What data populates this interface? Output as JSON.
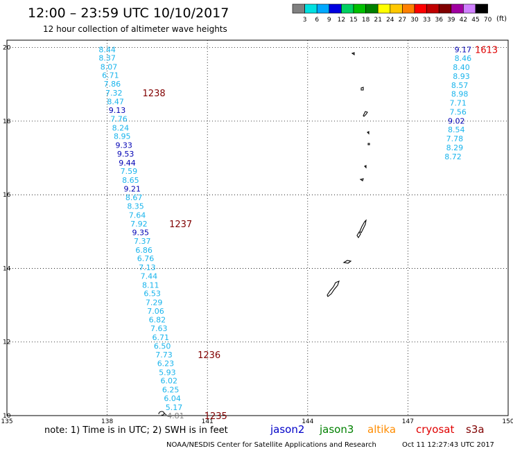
{
  "header": {
    "title": "12:00 – 23:59 UTC 10/10/2017",
    "subtitle": "12 hour collection of altimeter wave heights"
  },
  "legend": {
    "unit": "(ft)",
    "bins": [
      {
        "label": "3",
        "color": "#808080"
      },
      {
        "label": "6",
        "color": "#00e0e0"
      },
      {
        "label": "9",
        "color": "#00a8ff"
      },
      {
        "label": "12",
        "color": "#0000e0"
      },
      {
        "label": "15",
        "color": "#00d060"
      },
      {
        "label": "18",
        "color": "#00c000"
      },
      {
        "label": "21",
        "color": "#008000"
      },
      {
        "label": "24",
        "color": "#ffff00"
      },
      {
        "label": "27",
        "color": "#ffc800"
      },
      {
        "label": "30",
        "color": "#ff8000"
      },
      {
        "label": "33",
        "color": "#ff0000"
      },
      {
        "label": "36",
        "color": "#c00000"
      },
      {
        "label": "39",
        "color": "#800000"
      },
      {
        "label": "42",
        "color": "#a000a0"
      },
      {
        "label": "45",
        "color": "#d080ff"
      },
      {
        "label": "70",
        "color": "#000000"
      }
    ]
  },
  "map": {
    "lon_min": 135,
    "lon_max": 150,
    "lat_min": 10,
    "lat_max": 20.2,
    "lon_ticks": [
      "135",
      "138",
      "141",
      "144",
      "147",
      "150"
    ],
    "lat_ticks": [
      "10",
      "12",
      "14",
      "16",
      "18",
      "20"
    ],
    "colors": {
      "light": "#19b4ec",
      "dark": "#0000b4",
      "time": "#800000",
      "time_red": "#e00000",
      "gray": "#808080"
    }
  },
  "track_west": [
    {
      "v": "8.44",
      "lon": 138.0,
      "lat": 19.95,
      "c": "light"
    },
    {
      "v": "8.37",
      "lon": 138.0,
      "lat": 19.72,
      "c": "light"
    },
    {
      "v": "8.07",
      "lon": 138.05,
      "lat": 19.48,
      "c": "light"
    },
    {
      "v": "6.71",
      "lon": 138.1,
      "lat": 19.25,
      "c": "light"
    },
    {
      "v": "7.86",
      "lon": 138.15,
      "lat": 19.01,
      "c": "light"
    },
    {
      "v": "7.32",
      "lon": 138.2,
      "lat": 18.77,
      "c": "light"
    },
    {
      "v": "8.47",
      "lon": 138.25,
      "lat": 18.53,
      "c": "light"
    },
    {
      "v": "9.13",
      "lon": 138.3,
      "lat": 18.3,
      "c": "dark"
    },
    {
      "v": "7.76",
      "lon": 138.35,
      "lat": 18.06,
      "c": "light"
    },
    {
      "v": "8.24",
      "lon": 138.4,
      "lat": 17.82,
      "c": "light"
    },
    {
      "v": "8.95",
      "lon": 138.45,
      "lat": 17.59,
      "c": "light"
    },
    {
      "v": "9.33",
      "lon": 138.5,
      "lat": 17.35,
      "c": "dark"
    },
    {
      "v": "9.53",
      "lon": 138.55,
      "lat": 17.11,
      "c": "dark"
    },
    {
      "v": "9.44",
      "lon": 138.6,
      "lat": 16.87,
      "c": "dark"
    },
    {
      "v": "7.59",
      "lon": 138.65,
      "lat": 16.64,
      "c": "light"
    },
    {
      "v": "8.65",
      "lon": 138.7,
      "lat": 16.4,
      "c": "light"
    },
    {
      "v": "9.21",
      "lon": 138.75,
      "lat": 16.16,
      "c": "dark"
    },
    {
      "v": "8.67",
      "lon": 138.8,
      "lat": 15.93,
      "c": "light"
    },
    {
      "v": "8.35",
      "lon": 138.85,
      "lat": 15.69,
      "c": "light"
    },
    {
      "v": "7.64",
      "lon": 138.9,
      "lat": 15.45,
      "c": "light"
    },
    {
      "v": "7.92",
      "lon": 138.95,
      "lat": 15.21,
      "c": "light"
    },
    {
      "v": "9.35",
      "lon": 139.0,
      "lat": 14.98,
      "c": "dark"
    },
    {
      "v": "7.37",
      "lon": 139.05,
      "lat": 14.74,
      "c": "light"
    },
    {
      "v": "6.86",
      "lon": 139.1,
      "lat": 14.5,
      "c": "light"
    },
    {
      "v": "6.76",
      "lon": 139.15,
      "lat": 14.27,
      "c": "light"
    },
    {
      "v": "7.13",
      "lon": 139.2,
      "lat": 14.03,
      "c": "light"
    },
    {
      "v": "7.44",
      "lon": 139.25,
      "lat": 13.79,
      "c": "light"
    },
    {
      "v": "8.11",
      "lon": 139.3,
      "lat": 13.55,
      "c": "light"
    },
    {
      "v": "6.53",
      "lon": 139.35,
      "lat": 13.32,
      "c": "light"
    },
    {
      "v": "7.29",
      "lon": 139.4,
      "lat": 13.08,
      "c": "light"
    },
    {
      "v": "7.06",
      "lon": 139.45,
      "lat": 12.84,
      "c": "light"
    },
    {
      "v": "6.82",
      "lon": 139.5,
      "lat": 12.61,
      "c": "light"
    },
    {
      "v": "7.63",
      "lon": 139.55,
      "lat": 12.37,
      "c": "light"
    },
    {
      "v": "6.71",
      "lon": 139.6,
      "lat": 12.13,
      "c": "light"
    },
    {
      "v": "6.50",
      "lon": 139.65,
      "lat": 11.89,
      "c": "light"
    },
    {
      "v": "7.73",
      "lon": 139.7,
      "lat": 11.66,
      "c": "light"
    },
    {
      "v": "6.23",
      "lon": 139.75,
      "lat": 11.42,
      "c": "light"
    },
    {
      "v": "5.93",
      "lon": 139.8,
      "lat": 11.18,
      "c": "light"
    },
    {
      "v": "6.02",
      "lon": 139.85,
      "lat": 10.95,
      "c": "light"
    },
    {
      "v": "6.25",
      "lon": 139.9,
      "lat": 10.71,
      "c": "light"
    },
    {
      "v": "6.04",
      "lon": 139.95,
      "lat": 10.47,
      "c": "light"
    },
    {
      "v": "5.17",
      "lon": 140.0,
      "lat": 10.23,
      "c": "light"
    },
    {
      "v": "4.81",
      "lon": 140.05,
      "lat": 10.0,
      "c": "gray"
    }
  ],
  "track_east": [
    {
      "v": "9.17",
      "lon": 148.65,
      "lat": 19.95,
      "c": "dark"
    },
    {
      "v": "8.46",
      "lon": 148.65,
      "lat": 19.71,
      "c": "light"
    },
    {
      "v": "8.40",
      "lon": 148.6,
      "lat": 19.47,
      "c": "light"
    },
    {
      "v": "8.93",
      "lon": 148.6,
      "lat": 19.22,
      "c": "light"
    },
    {
      "v": "8.57",
      "lon": 148.55,
      "lat": 18.98,
      "c": "light"
    },
    {
      "v": "8.98",
      "lon": 148.55,
      "lat": 18.74,
      "c": "light"
    },
    {
      "v": "7.71",
      "lon": 148.5,
      "lat": 18.5,
      "c": "light"
    },
    {
      "v": "7.56",
      "lon": 148.5,
      "lat": 18.25,
      "c": "light"
    },
    {
      "v": "9.02",
      "lon": 148.45,
      "lat": 18.01,
      "c": "dark"
    },
    {
      "v": "8.54",
      "lon": 148.45,
      "lat": 17.77,
      "c": "light"
    },
    {
      "v": "7.78",
      "lon": 148.4,
      "lat": 17.53,
      "c": "light"
    },
    {
      "v": "8.29",
      "lon": 148.4,
      "lat": 17.28,
      "c": "light"
    },
    {
      "v": "8.72",
      "lon": 148.35,
      "lat": 17.04,
      "c": "light"
    }
  ],
  "time_labels": [
    {
      "t": "1238",
      "lon": 139.4,
      "lat": 18.77,
      "c": "time"
    },
    {
      "t": "1237",
      "lon": 140.2,
      "lat": 15.21,
      "c": "time"
    },
    {
      "t": "1236",
      "lon": 141.05,
      "lat": 11.66,
      "c": "time"
    },
    {
      "t": "1235",
      "lon": 141.25,
      "lat": 10.0,
      "c": "time"
    },
    {
      "t": "1613",
      "lon": 149.35,
      "lat": 19.95,
      "c": "time_red"
    }
  ],
  "islands": [
    "Guam",
    "Rota",
    "Tinian",
    "Saipan",
    "Anatahan",
    "Pagan",
    "Agrihan",
    "Alamagan",
    "Maug"
  ],
  "footer": {
    "note": "note: 1) Time is in UTC; 2) SWH is in feet",
    "missions": [
      {
        "label": "jason2",
        "color": "#0000c8"
      },
      {
        "label": "jason3",
        "color": "#008000"
      },
      {
        "label": "altika",
        "color": "#ff8c00"
      },
      {
        "label": "cryosat",
        "color": "#e00000"
      },
      {
        "label": "s3a",
        "color": "#800000"
      }
    ],
    "credit": "NOAA/NESDIS Center for Satellite Applications and Research",
    "timestamp": "Oct 11 12:27:43 UTC 2017"
  }
}
